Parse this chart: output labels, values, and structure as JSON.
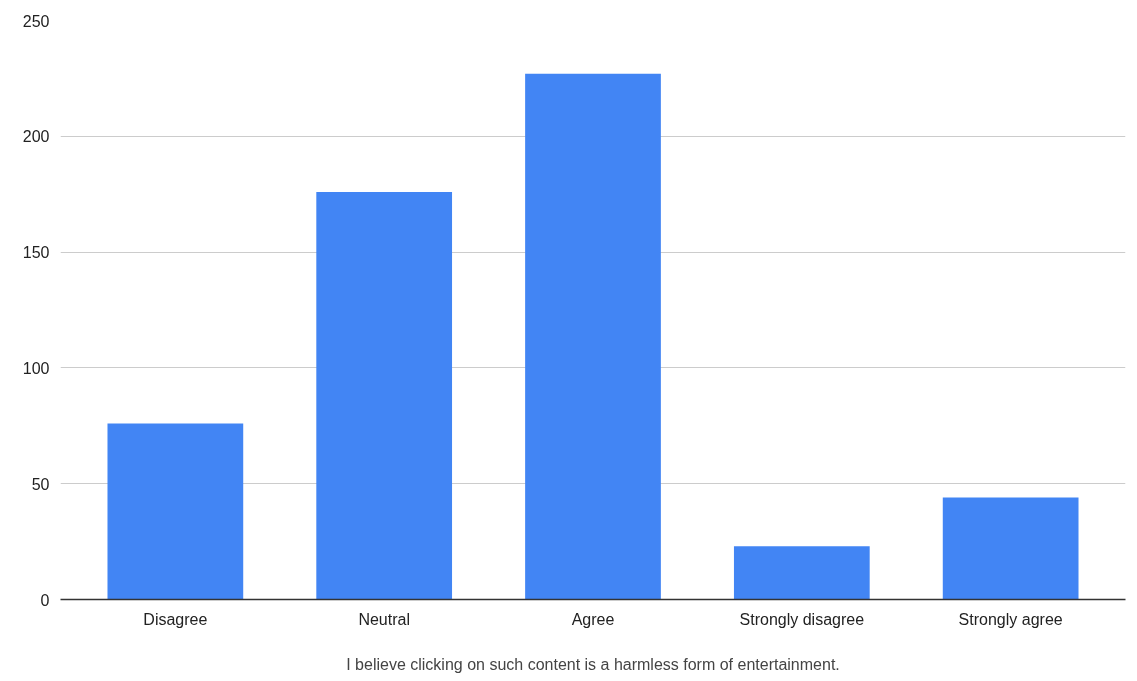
{
  "chart_data": {
    "type": "bar",
    "xlabel": "I believe clicking on such content is a harmless form of entertainment.",
    "categories": [
      "Disagree",
      "Neutral",
      "Agree",
      "Strongly disagree",
      "Strongly agree"
    ],
    "values": [
      76,
      176,
      227,
      23,
      44
    ],
    "color": "#4285f4",
    "ylim": [
      0,
      250
    ],
    "yticks": [
      0,
      50,
      100,
      150,
      200,
      250
    ],
    "grid": "y"
  }
}
